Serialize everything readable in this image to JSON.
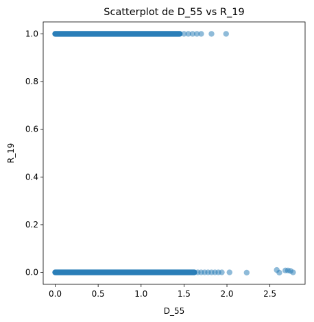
{
  "chart_data": {
    "type": "scatter",
    "title": "Scatterplot de D_55 vs R_19",
    "xlabel": "D_55",
    "ylabel": "R_19",
    "xlim": [
      -0.14,
      2.91
    ],
    "ylim": [
      -0.05,
      1.05
    ],
    "xticks": [
      0.0,
      0.5,
      1.0,
      1.5,
      2.0,
      2.5
    ],
    "xtick_labels": [
      "0.0",
      "0.5",
      "1.0",
      "1.5",
      "2.0",
      "2.5"
    ],
    "yticks": [
      0.0,
      0.2,
      0.4,
      0.6,
      0.8,
      1.0
    ],
    "ytick_labels": [
      "0.0",
      "0.2",
      "0.4",
      "0.6",
      "0.8",
      "1.0"
    ],
    "grid": false,
    "marker_color": "#1f77b4",
    "marker_alpha": 0.5,
    "series": [
      {
        "dense_bands": [
          {
            "y": 1.0,
            "x_range": [
              0.0,
              1.45
            ]
          },
          {
            "y": 0.0,
            "x_range": [
              0.0,
              1.62
            ]
          }
        ],
        "points": [
          {
            "x": 1.5,
            "y": 1.0
          },
          {
            "x": 1.55,
            "y": 1.0
          },
          {
            "x": 1.6,
            "y": 1.0
          },
          {
            "x": 1.65,
            "y": 1.0
          },
          {
            "x": 1.7,
            "y": 1.0
          },
          {
            "x": 1.82,
            "y": 1.0
          },
          {
            "x": 1.99,
            "y": 1.0
          },
          {
            "x": 1.66,
            "y": 0.0
          },
          {
            "x": 1.7,
            "y": 0.0
          },
          {
            "x": 1.74,
            "y": 0.0
          },
          {
            "x": 1.78,
            "y": 0.0
          },
          {
            "x": 1.82,
            "y": 0.0
          },
          {
            "x": 1.86,
            "y": 0.0
          },
          {
            "x": 1.9,
            "y": 0.0
          },
          {
            "x": 1.94,
            "y": 0.0
          },
          {
            "x": 2.03,
            "y": 0.0
          },
          {
            "x": 2.23,
            "y": -0.001
          },
          {
            "x": 2.58,
            "y": 0.01
          },
          {
            "x": 2.61,
            "y": -0.001
          },
          {
            "x": 2.68,
            "y": 0.008
          },
          {
            "x": 2.71,
            "y": 0.008
          },
          {
            "x": 2.74,
            "y": 0.006
          },
          {
            "x": 2.77,
            "y": 0.0
          }
        ]
      }
    ]
  }
}
